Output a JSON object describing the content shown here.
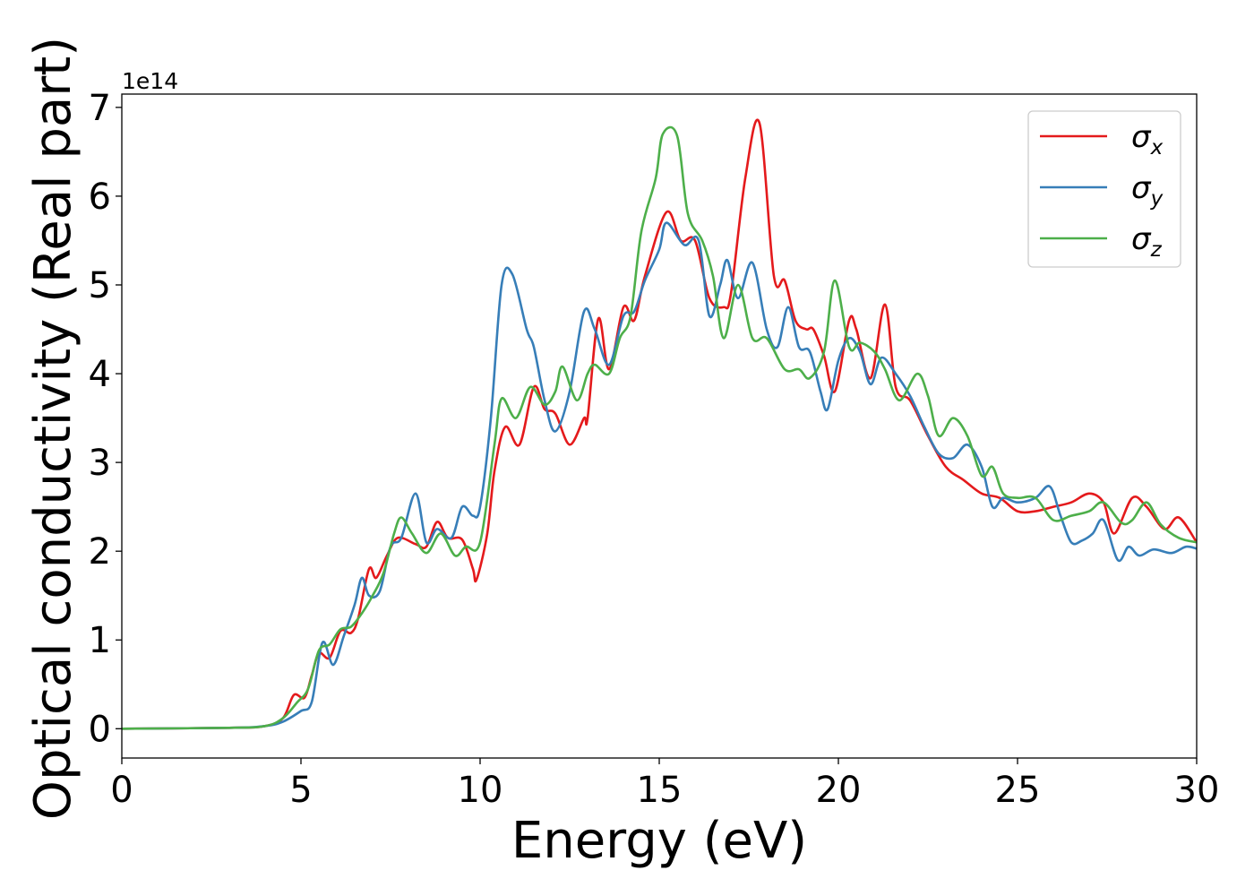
{
  "chart_data": {
    "type": "line",
    "xlabel": "Energy (eV)",
    "ylabel": "Optical conductivity (Real part)",
    "y_offset_label": "1e14",
    "xlim": [
      0,
      30
    ],
    "ylim": [
      -0.33,
      7.15
    ],
    "xticks": [
      "0",
      "5",
      "10",
      "15",
      "20",
      "25",
      "30"
    ],
    "yticks": [
      "0",
      "1",
      "2",
      "3",
      "4",
      "5",
      "6",
      "7"
    ],
    "legend_position": "top-right",
    "series": [
      {
        "name": "σ",
        "subscript": "x",
        "color": "#e41a1c",
        "points": [
          [
            0,
            0
          ],
          [
            3,
            0.01
          ],
          [
            4,
            0.03
          ],
          [
            4.5,
            0.12
          ],
          [
            4.8,
            0.38
          ],
          [
            5.1,
            0.35
          ],
          [
            5.3,
            0.6
          ],
          [
            5.5,
            0.85
          ],
          [
            5.8,
            0.8
          ],
          [
            6.1,
            1.1
          ],
          [
            6.4,
            1.08
          ],
          [
            6.6,
            1.25
          ],
          [
            6.9,
            1.8
          ],
          [
            7.1,
            1.7
          ],
          [
            7.4,
            1.95
          ],
          [
            7.7,
            2.15
          ],
          [
            8.2,
            2.08
          ],
          [
            8.5,
            2.05
          ],
          [
            8.8,
            2.33
          ],
          [
            9.1,
            2.15
          ],
          [
            9.5,
            2.13
          ],
          [
            9.8,
            1.8
          ],
          [
            9.9,
            1.68
          ],
          [
            10.2,
            2.2
          ],
          [
            10.4,
            2.9
          ],
          [
            10.7,
            3.4
          ],
          [
            11.1,
            3.2
          ],
          [
            11.5,
            3.85
          ],
          [
            11.8,
            3.6
          ],
          [
            12.1,
            3.55
          ],
          [
            12.5,
            3.2
          ],
          [
            12.9,
            3.5
          ],
          [
            13,
            3.5
          ],
          [
            13.3,
            4.62
          ],
          [
            13.6,
            4.05
          ],
          [
            14,
            4.75
          ],
          [
            14.3,
            4.6
          ],
          [
            14.6,
            5.1
          ],
          [
            15.2,
            5.82
          ],
          [
            15.6,
            5.5
          ],
          [
            16,
            5.5
          ],
          [
            16.4,
            4.85
          ],
          [
            16.8,
            4.75
          ],
          [
            17,
            4.9
          ],
          [
            17.4,
            6.2
          ],
          [
            17.8,
            6.82
          ],
          [
            18.2,
            5.1
          ],
          [
            18.5,
            5.05
          ],
          [
            18.8,
            4.6
          ],
          [
            19.1,
            4.5
          ],
          [
            19.3,
            4.5
          ],
          [
            19.6,
            4.2
          ],
          [
            19.9,
            3.8
          ],
          [
            20.3,
            4.6
          ],
          [
            20.5,
            4.5
          ],
          [
            20.9,
            3.95
          ],
          [
            21.3,
            4.78
          ],
          [
            21.6,
            3.85
          ],
          [
            22,
            3.7
          ],
          [
            22.5,
            3.3
          ],
          [
            23,
            2.95
          ],
          [
            23.5,
            2.8
          ],
          [
            24,
            2.65
          ],
          [
            24.5,
            2.6
          ],
          [
            25,
            2.45
          ],
          [
            25.5,
            2.45
          ],
          [
            26,
            2.5
          ],
          [
            26.5,
            2.55
          ],
          [
            27,
            2.65
          ],
          [
            27.4,
            2.55
          ],
          [
            27.7,
            2.2
          ],
          [
            28.2,
            2.6
          ],
          [
            28.6,
            2.5
          ],
          [
            29.1,
            2.25
          ],
          [
            29.5,
            2.38
          ],
          [
            30,
            2.1
          ]
        ]
      },
      {
        "name": "σ",
        "subscript": "y",
        "color": "#377eb8",
        "points": [
          [
            0,
            0
          ],
          [
            3,
            0.01
          ],
          [
            4,
            0.03
          ],
          [
            4.5,
            0.08
          ],
          [
            5,
            0.2
          ],
          [
            5.3,
            0.3
          ],
          [
            5.6,
            0.97
          ],
          [
            5.9,
            0.72
          ],
          [
            6.2,
            1.05
          ],
          [
            6.5,
            1.4
          ],
          [
            6.7,
            1.7
          ],
          [
            6.9,
            1.5
          ],
          [
            7.2,
            1.55
          ],
          [
            7.5,
            2.05
          ],
          [
            7.8,
            2.15
          ],
          [
            8.2,
            2.65
          ],
          [
            8.5,
            2.1
          ],
          [
            8.8,
            2.25
          ],
          [
            9.2,
            2.15
          ],
          [
            9.5,
            2.5
          ],
          [
            9.8,
            2.4
          ],
          [
            10,
            2.5
          ],
          [
            10.3,
            3.5
          ],
          [
            10.6,
            5
          ],
          [
            10.9,
            5.12
          ],
          [
            11.3,
            4.5
          ],
          [
            11.5,
            4.3
          ],
          [
            11.8,
            3.7
          ],
          [
            12.1,
            3.35
          ],
          [
            12.5,
            3.8
          ],
          [
            12.9,
            4.7
          ],
          [
            13.2,
            4.5
          ],
          [
            13.6,
            4.1
          ],
          [
            14,
            4.65
          ],
          [
            14.3,
            4.7
          ],
          [
            14.6,
            5.05
          ],
          [
            15,
            5.4
          ],
          [
            15.2,
            5.7
          ],
          [
            15.7,
            5.45
          ],
          [
            16.1,
            5.5
          ],
          [
            16.4,
            4.65
          ],
          [
            16.7,
            5
          ],
          [
            16.9,
            5.28
          ],
          [
            17.2,
            4.85
          ],
          [
            17.6,
            5.25
          ],
          [
            18,
            4.5
          ],
          [
            18.3,
            4.3
          ],
          [
            18.6,
            4.75
          ],
          [
            18.9,
            4.3
          ],
          [
            19.2,
            4.25
          ],
          [
            19.5,
            3.8
          ],
          [
            19.7,
            3.6
          ],
          [
            20,
            4.15
          ],
          [
            20.3,
            4.4
          ],
          [
            20.6,
            4.25
          ],
          [
            20.9,
            3.88
          ],
          [
            21.2,
            4.18
          ],
          [
            21.6,
            4
          ],
          [
            22,
            3.75
          ],
          [
            22.4,
            3.4
          ],
          [
            22.8,
            3.1
          ],
          [
            23.2,
            3.05
          ],
          [
            23.6,
            3.2
          ],
          [
            24,
            2.95
          ],
          [
            24.3,
            2.5
          ],
          [
            24.6,
            2.6
          ],
          [
            25,
            2.55
          ],
          [
            25.5,
            2.6
          ],
          [
            25.9,
            2.73
          ],
          [
            26.2,
            2.4
          ],
          [
            26.5,
            2.1
          ],
          [
            26.8,
            2.12
          ],
          [
            27.1,
            2.2
          ],
          [
            27.4,
            2.35
          ],
          [
            27.8,
            1.9
          ],
          [
            28.1,
            2.05
          ],
          [
            28.4,
            1.95
          ],
          [
            28.8,
            2.02
          ],
          [
            29.3,
            1.98
          ],
          [
            29.7,
            2.05
          ],
          [
            30,
            2.03
          ]
        ]
      },
      {
        "name": "σ",
        "subscript": "z",
        "color": "#4daf4a",
        "points": [
          [
            0,
            0
          ],
          [
            3,
            0.01
          ],
          [
            4,
            0.03
          ],
          [
            4.5,
            0.12
          ],
          [
            4.9,
            0.3
          ],
          [
            5.2,
            0.45
          ],
          [
            5.5,
            0.88
          ],
          [
            5.8,
            0.95
          ],
          [
            6.1,
            1.12
          ],
          [
            6.4,
            1.15
          ],
          [
            6.7,
            1.3
          ],
          [
            7,
            1.5
          ],
          [
            7.3,
            1.75
          ],
          [
            7.6,
            2.2
          ],
          [
            7.8,
            2.38
          ],
          [
            8.1,
            2.2
          ],
          [
            8.5,
            1.98
          ],
          [
            8.9,
            2.2
          ],
          [
            9.3,
            1.95
          ],
          [
            9.6,
            2.05
          ],
          [
            10,
            2.1
          ],
          [
            10.4,
            3.2
          ],
          [
            10.6,
            3.72
          ],
          [
            11,
            3.5
          ],
          [
            11.4,
            3.85
          ],
          [
            11.8,
            3.65
          ],
          [
            12.1,
            3.8
          ],
          [
            12.3,
            4.08
          ],
          [
            12.7,
            3.7
          ],
          [
            13,
            4
          ],
          [
            13.2,
            4.1
          ],
          [
            13.6,
            4
          ],
          [
            13.9,
            4.4
          ],
          [
            14.2,
            4.65
          ],
          [
            14.5,
            5.6
          ],
          [
            14.9,
            6.2
          ],
          [
            15.1,
            6.7
          ],
          [
            15.5,
            6.68
          ],
          [
            15.8,
            5.8
          ],
          [
            16.2,
            5.5
          ],
          [
            16.5,
            5.1
          ],
          [
            16.8,
            4.4
          ],
          [
            17.2,
            5
          ],
          [
            17.6,
            4.4
          ],
          [
            18,
            4.4
          ],
          [
            18.5,
            4.05
          ],
          [
            18.9,
            4.05
          ],
          [
            19.2,
            3.95
          ],
          [
            19.6,
            4.25
          ],
          [
            19.9,
            5.05
          ],
          [
            20.3,
            4.3
          ],
          [
            20.6,
            4.35
          ],
          [
            21,
            4.25
          ],
          [
            21.3,
            4.05
          ],
          [
            21.7,
            3.7
          ],
          [
            22.2,
            4
          ],
          [
            22.5,
            3.75
          ],
          [
            22.8,
            3.3
          ],
          [
            23.2,
            3.5
          ],
          [
            23.6,
            3.3
          ],
          [
            24,
            2.85
          ],
          [
            24.3,
            2.95
          ],
          [
            24.6,
            2.65
          ],
          [
            25,
            2.6
          ],
          [
            25.5,
            2.6
          ],
          [
            26,
            2.35
          ],
          [
            26.5,
            2.4
          ],
          [
            27,
            2.45
          ],
          [
            27.4,
            2.55
          ],
          [
            27.9,
            2.32
          ],
          [
            28.2,
            2.35
          ],
          [
            28.6,
            2.55
          ],
          [
            29,
            2.3
          ],
          [
            29.5,
            2.15
          ],
          [
            30,
            2.1
          ]
        ]
      }
    ]
  }
}
